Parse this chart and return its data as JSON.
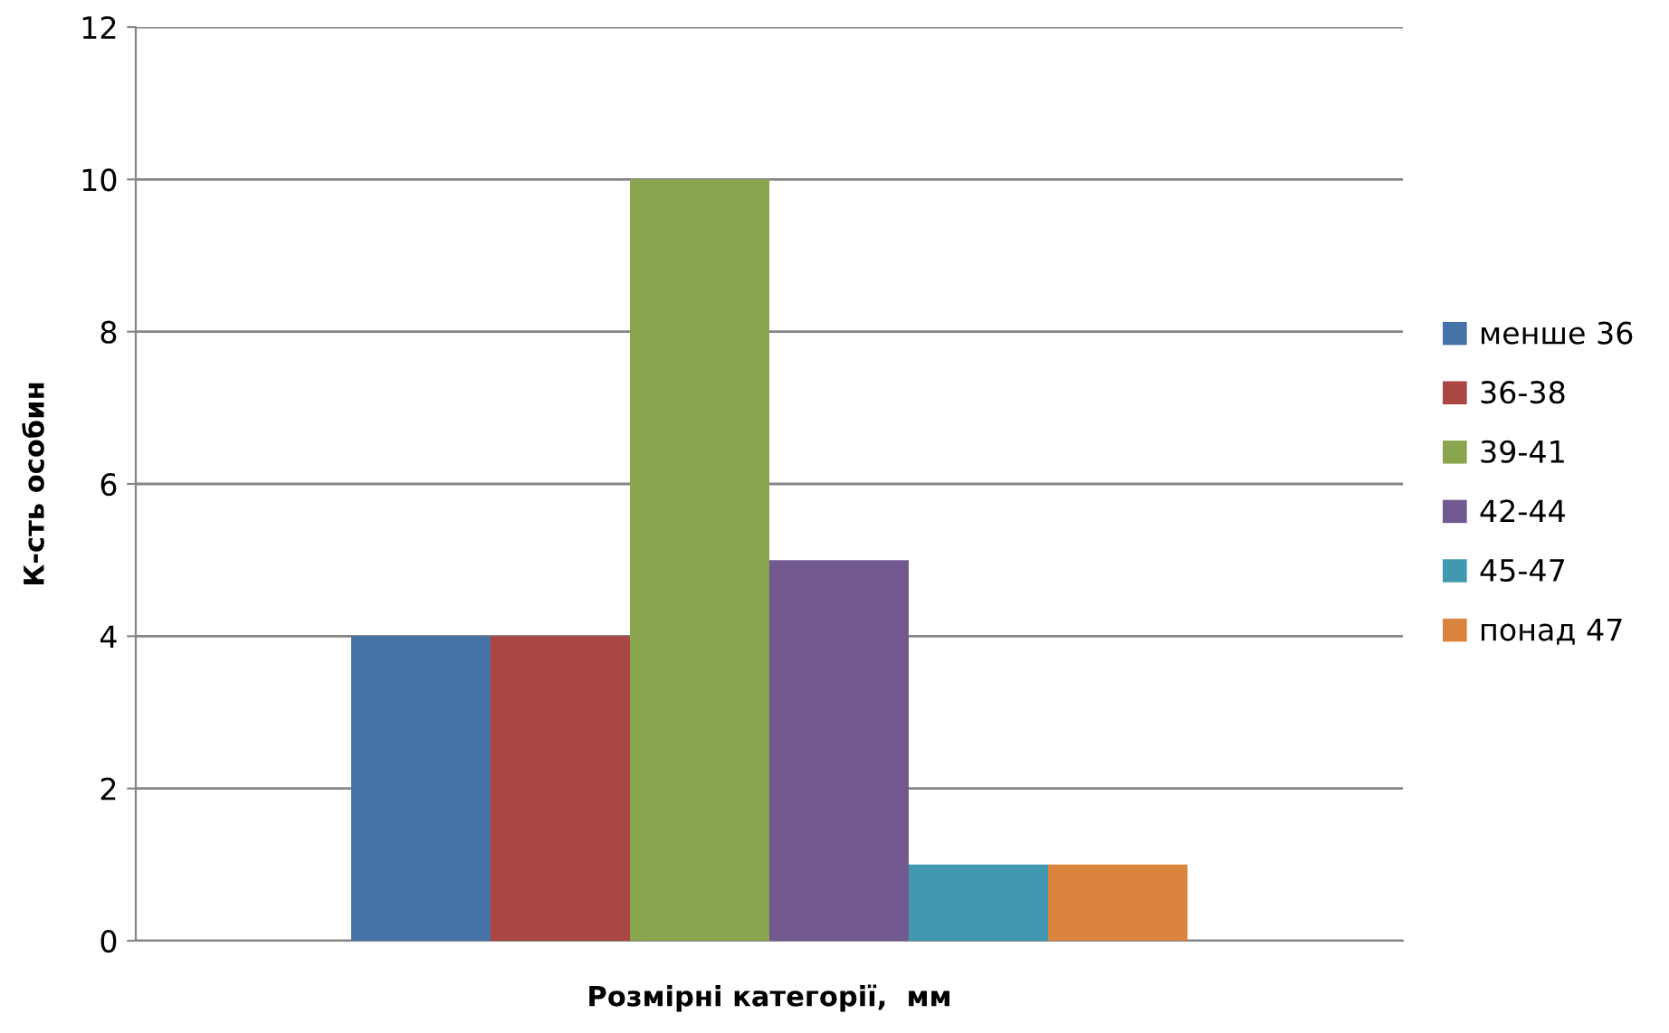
{
  "chart_data": {
    "type": "bar",
    "xlabel": "Розмірні категорії,  мм",
    "ylabel": "К-сть особин",
    "categories": [
      null
    ],
    "series": [
      {
        "name": "менше 36",
        "color": "#4572a7",
        "values": [
          4
        ]
      },
      {
        "name": "36-38",
        "color": "#aa4643",
        "values": [
          4
        ]
      },
      {
        "name": "39-41",
        "color": "#89a54e",
        "values": [
          10
        ]
      },
      {
        "name": "42-44",
        "color": "#71588f",
        "values": [
          5
        ]
      },
      {
        "name": "45-47",
        "color": "#4198af",
        "values": [
          1
        ]
      },
      {
        "name": "понад 47",
        "color": "#db843d",
        "values": [
          1
        ]
      }
    ],
    "ylim": [
      0,
      12
    ],
    "yticks": [
      0,
      2,
      4,
      6,
      8,
      10,
      12
    ],
    "grid": "y",
    "legend": "right"
  }
}
